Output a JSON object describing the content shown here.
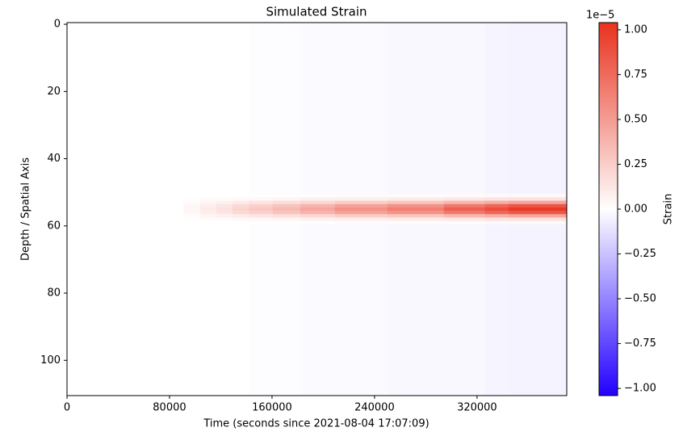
{
  "chart_data": {
    "type": "heatmap",
    "title": "Simulated Strain",
    "x_label": "Time (seconds since 2021-08-04 17:07:09)",
    "y_label": "Depth / Spatial Axis",
    "x_bins": [
      0,
      91000,
      104000,
      116500,
      129000,
      142000,
      160500,
      182000,
      209000,
      250000,
      294000,
      326000,
      344500,
      390000
    ],
    "y_bins": [
      -0.5,
      50.5,
      51.5,
      52.5,
      53.5,
      54.5,
      55.5,
      56.5,
      57.5,
      58.5,
      59.5,
      110.5
    ],
    "z": [
      [
        0,
        0,
        0,
        0,
        0,
        -0.01,
        -0.01,
        -0.02,
        -0.02,
        -0.03,
        -0.03,
        -0.04,
        -0.05
      ],
      [
        0,
        0,
        0,
        0,
        0.01,
        0.01,
        0.01,
        0.01,
        0.02,
        0.02,
        0.02,
        0.03,
        0.03
      ],
      [
        0,
        0.01,
        0.02,
        0.02,
        0.03,
        0.04,
        0.05,
        0.07,
        0.08,
        0.1,
        0.12,
        0.14,
        0.15
      ],
      [
        0,
        0.02,
        0.05,
        0.07,
        0.1,
        0.13,
        0.16,
        0.2,
        0.25,
        0.29,
        0.36,
        0.41,
        0.45
      ],
      [
        0,
        0.04,
        0.09,
        0.13,
        0.19,
        0.24,
        0.3,
        0.38,
        0.47,
        0.55,
        0.68,
        0.77,
        0.85
      ],
      [
        0,
        0.05,
        0.1,
        0.15,
        0.22,
        0.28,
        0.35,
        0.45,
        0.55,
        0.65,
        0.8,
        0.9,
        1.0
      ],
      [
        0,
        0.04,
        0.09,
        0.13,
        0.19,
        0.24,
        0.3,
        0.38,
        0.47,
        0.55,
        0.68,
        0.77,
        0.85
      ],
      [
        0,
        0.02,
        0.05,
        0.07,
        0.1,
        0.13,
        0.16,
        0.2,
        0.25,
        0.29,
        0.36,
        0.41,
        0.45
      ],
      [
        0,
        0.01,
        0.02,
        0.02,
        0.03,
        0.04,
        0.05,
        0.07,
        0.08,
        0.1,
        0.12,
        0.14,
        0.15
      ],
      [
        0,
        0,
        0,
        0,
        0.01,
        0.01,
        0.01,
        0.01,
        0.02,
        0.02,
        0.02,
        0.03,
        0.03
      ],
      [
        0,
        0,
        0,
        0,
        0,
        -0.01,
        -0.01,
        -0.02,
        -0.02,
        -0.03,
        -0.03,
        -0.04,
        -0.05
      ]
    ],
    "xlim": [
      0,
      390000
    ],
    "ylim": [
      110.5,
      -0.5
    ],
    "xticks": [
      0,
      80000,
      160000,
      240000,
      320000
    ],
    "yticks": [
      0,
      20,
      40,
      60,
      80,
      100
    ],
    "colormap": [
      "#2200ff",
      "#ffffff",
      "#e8321e"
    ],
    "clim": [
      -1.04,
      1.04
    ],
    "colorbar_label": "Strain",
    "colorbar_offset": "1e−5",
    "colorbar_ticks": [
      {
        "value": -1,
        "label": "−1.00"
      },
      {
        "value": -0.75,
        "label": "−0.75"
      },
      {
        "value": -0.5,
        "label": "−0.50"
      },
      {
        "value": -0.25,
        "label": "−0.25"
      },
      {
        "value": 0,
        "label": "0.00"
      },
      {
        "value": 0.25,
        "label": "0.25"
      },
      {
        "value": 0.5,
        "label": "0.50"
      },
      {
        "value": 0.75,
        "label": "0.75"
      },
      {
        "value": 1,
        "label": "1.00"
      }
    ]
  }
}
